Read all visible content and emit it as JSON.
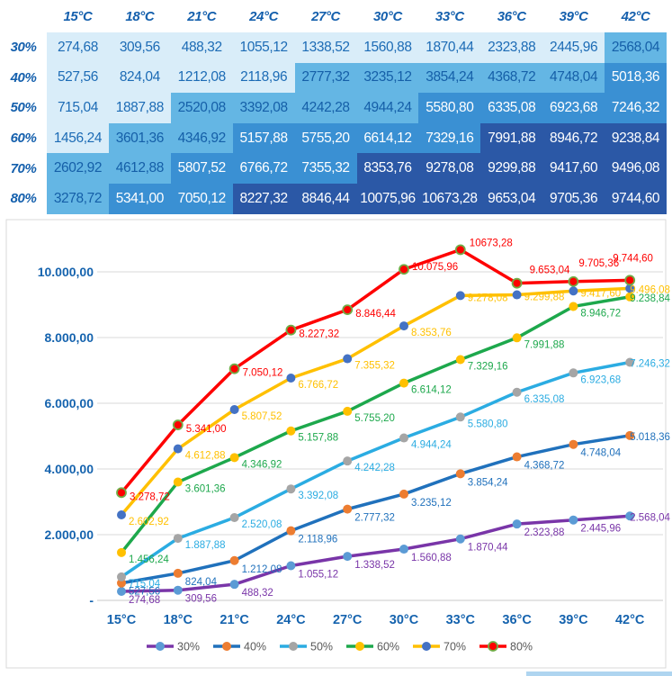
{
  "table": {
    "corner": "",
    "col_headers": [
      "15°C",
      "18°C",
      "21°C",
      "24°C",
      "27°C",
      "30°C",
      "33°C",
      "36°C",
      "39°C",
      "42°C"
    ],
    "rows": [
      {
        "label": "30%",
        "values": [
          "274,68",
          "309,56",
          "488,32",
          "1055,12",
          "1338,52",
          "1560,88",
          "1870,44",
          "2323,88",
          "2445,96",
          "2568,04"
        ]
      },
      {
        "label": "40%",
        "values": [
          "527,56",
          "824,04",
          "1212,08",
          "2118,96",
          "2777,32",
          "3235,12",
          "3854,24",
          "4368,72",
          "4748,04",
          "5018,36"
        ]
      },
      {
        "label": "50%",
        "values": [
          "715,04",
          "1887,88",
          "2520,08",
          "3392,08",
          "4242,28",
          "4944,24",
          "5580,80",
          "6335,08",
          "6923,68",
          "7246,32"
        ]
      },
      {
        "label": "60%",
        "values": [
          "1456,24",
          "3601,36",
          "4346,92",
          "5157,88",
          "5755,20",
          "6614,12",
          "7329,16",
          "7991,88",
          "8946,72",
          "9238,84"
        ]
      },
      {
        "label": "70%",
        "values": [
          "2602,92",
          "4612,88",
          "5807,52",
          "6766,72",
          "7355,32",
          "8353,76",
          "9278,08",
          "9299,88",
          "9417,60",
          "9496,08"
        ]
      },
      {
        "label": "80%",
        "values": [
          "3278,72",
          "5341,00",
          "7050,12",
          "8227,32",
          "8846,44",
          "10075,96",
          "10673,28",
          "9653,04",
          "9705,36",
          "9744,60"
        ]
      }
    ],
    "heat_thresholds": [
      2500,
      5000,
      7500
    ],
    "heat_palette": [
      "#D9EDF9",
      "#64B6E4",
      "#3A90D3",
      "#2B58A6"
    ],
    "heat_text_colors": [
      "#1C6BB5",
      "#155FA8",
      "#FFFFFF",
      "#FFFFFF"
    ],
    "header_text_color": "#1560AD"
  },
  "chart_data": {
    "type": "line",
    "title": "",
    "categories": [
      "15°C",
      "18°C",
      "21°C",
      "24°C",
      "27°C",
      "30°C",
      "33°C",
      "36°C",
      "39°C",
      "42°C"
    ],
    "series": [
      {
        "name": "30%",
        "line_color": "#7935A8",
        "marker_color": "#5B9BD5",
        "values": [
          274.68,
          309.56,
          488.32,
          1055.12,
          1338.52,
          1560.88,
          1870.44,
          2323.88,
          2445.96,
          2568.04
        ],
        "labels": [
          "274,68",
          "309,56",
          "488,32",
          "1.055,12",
          "1.338,52",
          "1.560,88",
          "1.870,44",
          "2.323,88",
          "2.445,96",
          "2.568,04"
        ]
      },
      {
        "name": "40%",
        "line_color": "#2071BC",
        "marker_color": "#ED7D31",
        "values": [
          527.56,
          824.04,
          1212.08,
          2118.96,
          2777.32,
          3235.12,
          3854.24,
          4368.72,
          4748.04,
          5018.36
        ],
        "labels": [
          "527,56",
          "824,04",
          "1.212,08",
          "2.118,96",
          "2.777,32",
          "3.235,12",
          "3.854,24",
          "4.368,72",
          "4.748,04",
          "5.018,36"
        ]
      },
      {
        "name": "50%",
        "line_color": "#2BACE2",
        "marker_color": "#A5A5A5",
        "values": [
          715.04,
          1887.88,
          2520.08,
          3392.08,
          4242.28,
          4944.24,
          5580.8,
          6335.08,
          6923.68,
          7246.32
        ],
        "labels": [
          "715,04",
          "1.887,88",
          "2.520,08",
          "3.392,08",
          "4.242,28",
          "4.944,24",
          "5.580,80",
          "6.335,08",
          "6.923,68",
          "7.246,32"
        ]
      },
      {
        "name": "60%",
        "line_color": "#1DA84C",
        "marker_color": "#FFC000",
        "values": [
          1456.24,
          3601.36,
          4346.92,
          5157.88,
          5755.2,
          6614.12,
          7329.16,
          7991.88,
          8946.72,
          9238.84
        ],
        "labels": [
          "1.456,24",
          "3.601,36",
          "4.346,92",
          "5.157,88",
          "5.755,20",
          "6.614,12",
          "7.329,16",
          "7.991,88",
          "8.946,72",
          "9.238,84"
        ]
      },
      {
        "name": "70%",
        "line_color": "#FFC000",
        "marker_color": "#4472C4",
        "values": [
          2602.92,
          4612.88,
          5807.52,
          6766.72,
          7355.32,
          8353.76,
          9278.08,
          9299.88,
          9417.6,
          9496.08
        ],
        "labels": [
          "2.602,92",
          "4.612,88",
          "5.807,52",
          "6.766,72",
          "7.355,32",
          "8.353,76",
          "9.278,08",
          "9.299,88",
          "9.417,60",
          "9.496,08"
        ]
      },
      {
        "name": "80%",
        "line_color": "#FE0000",
        "marker_color": "#FE0000",
        "marker_ring": "#70AD47",
        "values": [
          3278.72,
          5341.0,
          7050.12,
          8227.32,
          8846.44,
          10075.96,
          10673.28,
          9653.04,
          9705.36,
          9744.6
        ],
        "labels": [
          "3.278,72",
          "5.341,00",
          "7.050,12",
          "8.227,32",
          "8.846,44",
          "10.075,96",
          "10673,28",
          "9.653,04",
          "9.705,36",
          "9.744,60"
        ]
      }
    ],
    "y_ticks": [
      "-",
      "2.000,00",
      "4.000,00",
      "6.000,00",
      "8.000,00",
      "10.000,00"
    ],
    "ylim": [
      0,
      11000
    ],
    "y_step": 2000,
    "grid": true,
    "legend_position": "bottom",
    "legend_labels": [
      "30%",
      "40%",
      "50%",
      "60%",
      "70%",
      "80%"
    ],
    "axis_text_color": "#1563AE",
    "grid_color": "#D9D9D9",
    "legend_text_color": "#595959"
  }
}
